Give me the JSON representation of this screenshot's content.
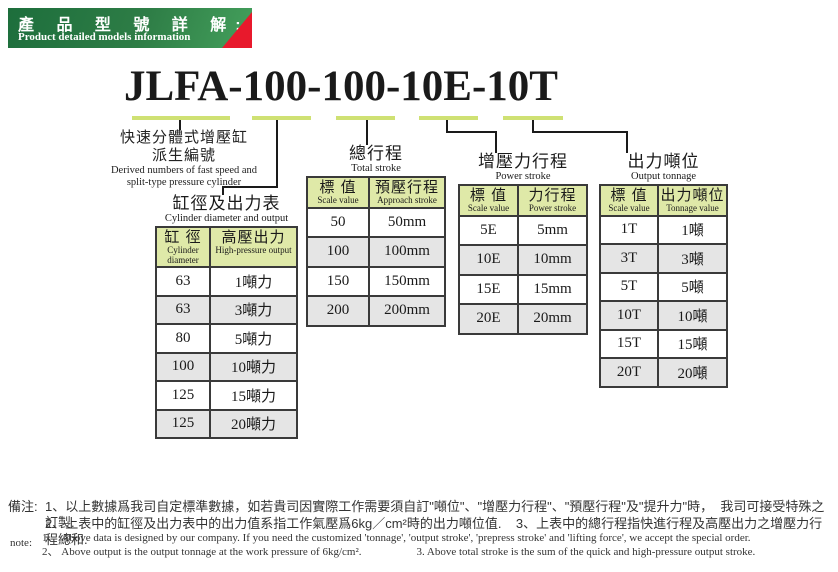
{
  "banner": {
    "title_zh": "產 品 型 號 詳 解:",
    "title_en": "Product detailed models information"
  },
  "model_number": "JLFA-100-100-10E-10T",
  "derived_label": {
    "zh1": "快速分體式增壓缸",
    "zh2": "派生編號",
    "en1": "Derived numbers of fast speed and",
    "en2": "split-type pressure cylinder"
  },
  "tables": [
    {
      "title_zh": "缸徑及出力表",
      "title_en": "Cylinder diameter and output",
      "headers": [
        {
          "zh": "缸 徑",
          "en": "Cylinder diameter"
        },
        {
          "zh": "高壓出力",
          "en": "High-pressure output"
        }
      ],
      "rows": [
        [
          "63",
          "1噸力"
        ],
        [
          "63",
          "3噸力"
        ],
        [
          "80",
          "5噸力"
        ],
        [
          "100",
          "10噸力"
        ],
        [
          "125",
          "15噸力"
        ],
        [
          "125",
          "20噸力"
        ]
      ]
    },
    {
      "title_zh": "總行程",
      "title_en": "Total stroke",
      "headers": [
        {
          "zh": "標 值",
          "en": "Scale value"
        },
        {
          "zh": "預壓行程",
          "en": "Approach stroke"
        }
      ],
      "rows": [
        [
          "50",
          "50mm"
        ],
        [
          "100",
          "100mm"
        ],
        [
          "150",
          "150mm"
        ],
        [
          "200",
          "200mm"
        ]
      ]
    },
    {
      "title_zh": "增壓力行程",
      "title_en": "Power stroke",
      "headers": [
        {
          "zh": "標 值",
          "en": "Scale value"
        },
        {
          "zh": "力行程",
          "en": "Power stroke"
        }
      ],
      "rows": [
        [
          "5E",
          "5mm"
        ],
        [
          "10E",
          "10mm"
        ],
        [
          "15E",
          "15mm"
        ],
        [
          "20E",
          "20mm"
        ]
      ]
    },
    {
      "title_zh": "出力噸位",
      "title_en": "Output tonnage",
      "headers": [
        {
          "zh": "標 值",
          "en": "Scale value"
        },
        {
          "zh": "出力噸位",
          "en": "Tonnage value"
        }
      ],
      "rows": [
        [
          "1T",
          "1噸"
        ],
        [
          "3T",
          "3噸"
        ],
        [
          "5T",
          "5噸"
        ],
        [
          "10T",
          "10噸"
        ],
        [
          "15T",
          "15噸"
        ],
        [
          "20T",
          "20噸"
        ]
      ]
    }
  ],
  "notes": {
    "zh_label": "備注:",
    "zh_line1": "1、以上數據爲我司自定標準數據，如若貴司因實際工作需要須自訂\"噸位\"、\"增壓力行程\"、\"預壓行程\"及\"提升力\"時，  我司可接受特殊之訂製.",
    "zh_line2": "2、上表中的缸徑及出力表中的出力值系指工作氣壓爲6kg／cm²時的出力噸位值.    3、上表中的總行程指快進行程及高壓出力之增壓力行程總和.",
    "en_label": "note:",
    "en_line1": "1、 Above data is designed by our company. If you need the customized 'tonnage', 'output stroke', 'prepress stroke' and 'lifting force', we accept the special order.",
    "en_line2": "2、 Above output is the output tonnage at the work pressure of 6kg/cm².                    3. Above total stroke is the sum of the quick and high-pressure output stroke."
  },
  "colors": {
    "banner-green": "#2e7d46",
    "banner-green-dark": "#1d6e3c",
    "banner-green-light": "#44a05c",
    "accent-red": "#e8192c",
    "underline": "#cfe173",
    "header-bg": "#dfe9a8",
    "row-alt": "#e5e5e5"
  }
}
